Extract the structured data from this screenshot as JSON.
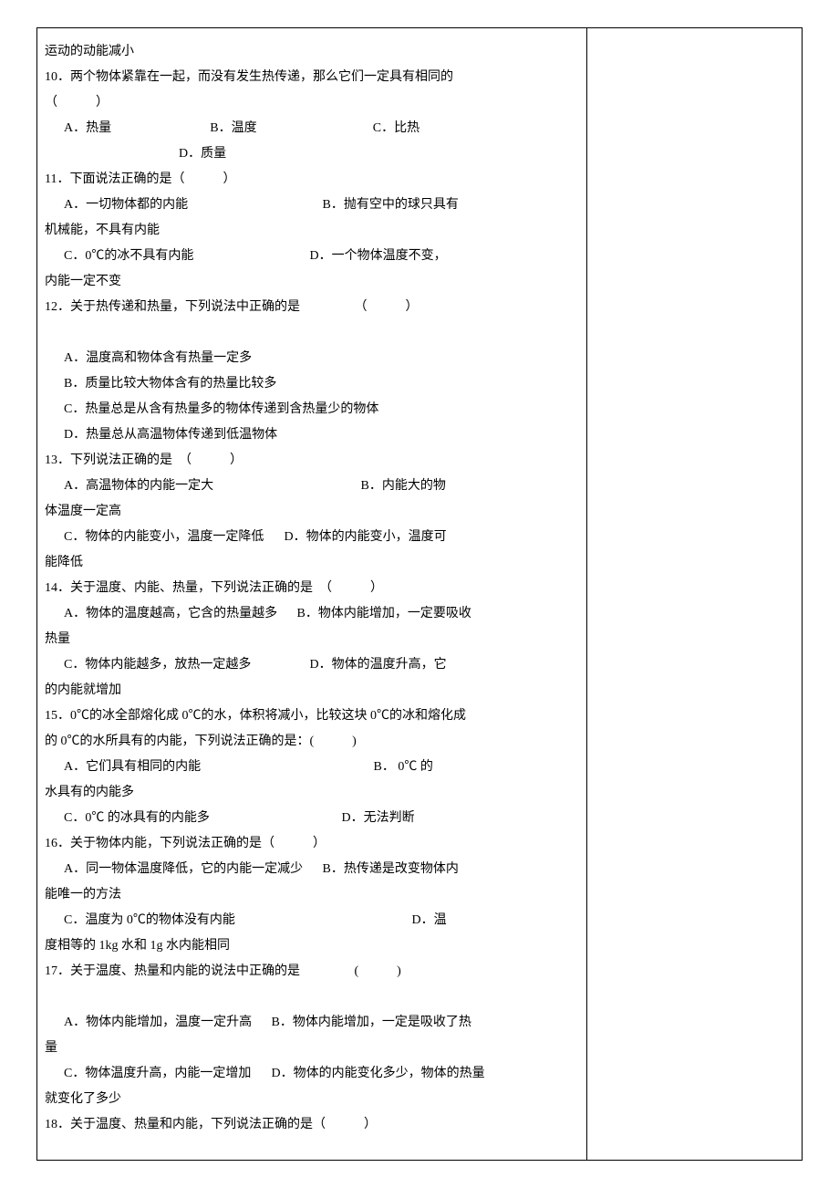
{
  "document": {
    "font_size_pt": 14,
    "line_height": 2.0,
    "text_color": "#000000",
    "background_color": "#ffffff",
    "border_color": "#000000"
  },
  "q_prev_tail": "运动的动能减小",
  "q10": {
    "stem": "10．两个物体紧靠在一起，而没有发生热传递，那么它们一定具有相同的",
    "bracket": "（　　　）",
    "a": "A．热量",
    "b": "B．温度",
    "c": "C．比热",
    "d": "D．质量"
  },
  "q11": {
    "stem": "11．下面说法正确的是（　　　）",
    "a": "A．一切物体都的内能",
    "b_pre": "B．抛有空中的球只具有",
    "b_tail": "机械能，不具有内能",
    "c": "C．0℃的冰不具有内能",
    "d_pre": "D．一个物体温度不变，",
    "d_tail": "内能一定不变"
  },
  "q12": {
    "stem": "12．关于热传递和热量，下列说法中正确的是",
    "bracket": "（　　　）",
    "a": "A．温度高和物体含有热量一定多",
    "b": "B．质量比较大物体含有的热量比较多",
    "c": "C．热量总是从含有热量多的物体传递到含热量少的物体",
    "d": "D．热量总从高温物体传递到低温物体"
  },
  "q13": {
    "stem": "13．下列说法正确的是　（　　　）",
    "a": "A．高温物体的内能一定大",
    "b_pre": "B．内能大的物",
    "b_tail": "体温度一定高",
    "c": "C．物体的内能变小，温度一定降低",
    "d_pre": "D．物体的内能变小，温度可",
    "d_tail": "能降低"
  },
  "q14": {
    "stem": "14．关于温度、内能、热量，下列说法正确的是　（　　　）",
    "a": "A．物体的温度越高，它含的热量越多",
    "b_pre": "B．物体内能增加，一定要吸收",
    "b_tail": "热量",
    "c": "C．物体内能越多，放热一定越多",
    "d_pre": "D．物体的温度升高，它",
    "d_tail": "的内能就增加"
  },
  "q15": {
    "stem1": "15．0℃的冰全部熔化成 0℃的水，体积将减小，比较这块 0℃的冰和熔化成",
    "stem2": "的 0℃的水所具有的内能，下列说法正确的是：(　　　)",
    "a": "A．它们具有相同的内能",
    "b_pre": "B．  0℃  的",
    "b_tail": "水具有的内能多",
    "c": "C．0℃ 的冰具有的内能多",
    "d": "D．无法判断"
  },
  "q16": {
    "stem": "16．关于物体内能，下列说法正确的是（　　　）",
    "a": "A．同一物体温度降低，它的内能一定减少",
    "b_pre": "B．热传递是改变物体内",
    "b_tail": "能唯一的方法",
    "c": "C．温度为 0℃的物体没有内能",
    "d_pre": "D．温",
    "d_tail": "度相等的 1kg 水和 1g 水内能相同"
  },
  "q17": {
    "stem": "17．关于温度、热量和内能的说法中正确的是",
    "bracket": "(　　　)",
    "a": "A．物体内能增加，温度一定升高",
    "b_pre": "B．物体内能增加，一定是吸收了热",
    "b_tail": "量",
    "c": "C．物体温度升高，内能一定增加",
    "d_pre": "D．物体的内能变化多少，物体的热量",
    "d_tail": "就变化了多少"
  },
  "q18": {
    "stem": "18．关于温度、热量和内能，下列说法正确的是（　　　）"
  }
}
